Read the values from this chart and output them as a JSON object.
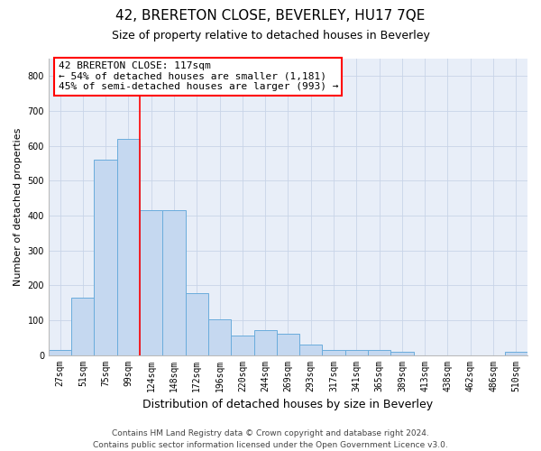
{
  "title": "42, BRERETON CLOSE, BEVERLEY, HU17 7QE",
  "subtitle": "Size of property relative to detached houses in Beverley",
  "xlabel": "Distribution of detached houses by size in Beverley",
  "ylabel": "Number of detached properties",
  "categories": [
    "27sqm",
    "51sqm",
    "75sqm",
    "99sqm",
    "124sqm",
    "148sqm",
    "172sqm",
    "196sqm",
    "220sqm",
    "244sqm",
    "269sqm",
    "293sqm",
    "317sqm",
    "341sqm",
    "365sqm",
    "389sqm",
    "413sqm",
    "438sqm",
    "462sqm",
    "486sqm",
    "510sqm"
  ],
  "values": [
    15,
    165,
    560,
    620,
    415,
    415,
    178,
    103,
    55,
    70,
    60,
    30,
    15,
    15,
    15,
    10,
    0,
    0,
    0,
    0,
    10
  ],
  "bar_color": "#c5d8f0",
  "bar_edge_color": "#6aacdc",
  "ylim": [
    0,
    850
  ],
  "yticks": [
    0,
    100,
    200,
    300,
    400,
    500,
    600,
    700,
    800
  ],
  "grid_color": "#c8d4e8",
  "background_color": "#e8eef8",
  "annotation_box_text": "42 BRERETON CLOSE: 117sqm\n← 54% of detached houses are smaller (1,181)\n45% of semi-detached houses are larger (993) →",
  "red_line_x": 3.5,
  "footer_line1": "Contains HM Land Registry data © Crown copyright and database right 2024.",
  "footer_line2": "Contains public sector information licensed under the Open Government Licence v3.0.",
  "title_fontsize": 11,
  "subtitle_fontsize": 9,
  "xlabel_fontsize": 9,
  "ylabel_fontsize": 8,
  "tick_fontsize": 7,
  "annotation_fontsize": 8,
  "footer_fontsize": 6.5
}
